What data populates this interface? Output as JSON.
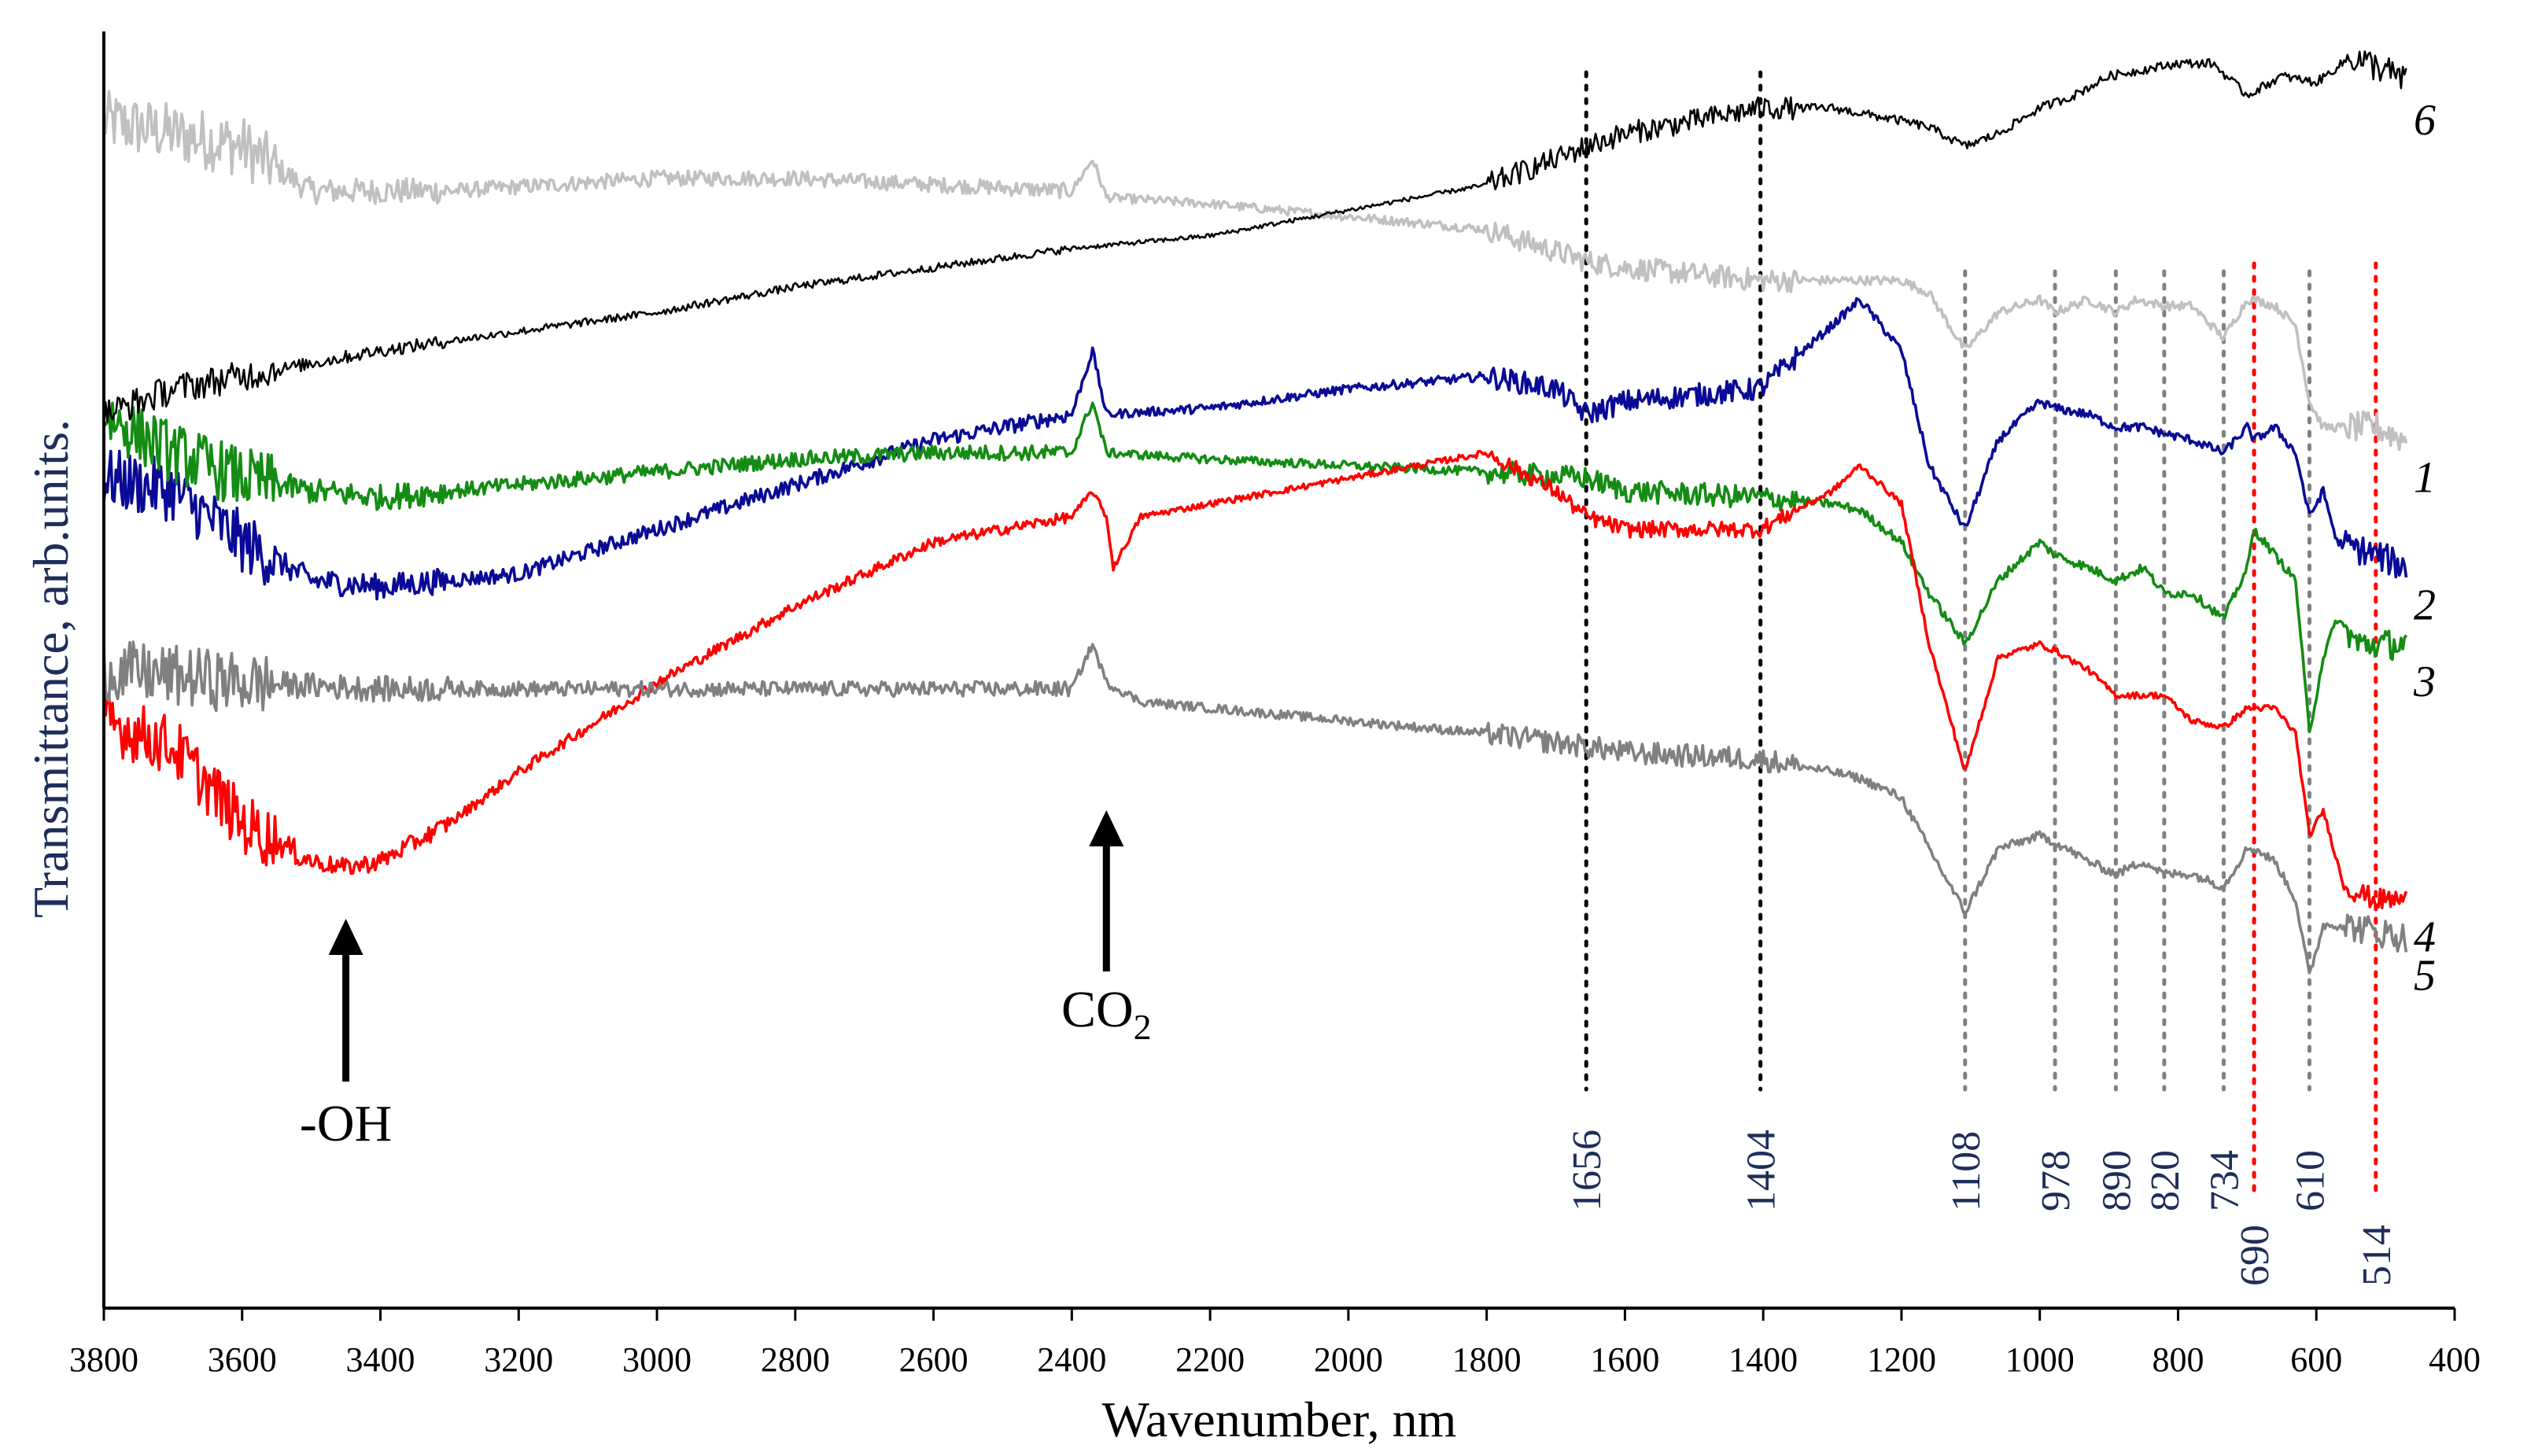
{
  "chart_data": {
    "type": "line",
    "xlabel": "Wavenumber, nm",
    "ylabel": "Transmittance, arb.units.",
    "xlim": [
      3800,
      400
    ],
    "x_ticks": [
      3800,
      3600,
      3400,
      3200,
      3000,
      2800,
      2600,
      2400,
      2200,
      2000,
      1800,
      1600,
      1400,
      1200,
      1000,
      800,
      600,
      400
    ],
    "ylim": [
      0,
      100
    ],
    "y_ticks_shown": false,
    "series": [
      {
        "name": "1",
        "color": "#c0c0c0",
        "label_pos": "right",
        "x": [
          3800,
          3600,
          3500,
          3300,
          3000,
          2800,
          2600,
          2400,
          2370,
          2350,
          2200,
          2000,
          1800,
          1656,
          1600,
          1404,
          1300,
          1200,
          1160,
          1108,
          1060,
          1000,
          978,
          930,
          890,
          860,
          820,
          780,
          734,
          700,
          690,
          660,
          630,
          610,
          590,
          540,
          514,
          470
        ],
        "y": [
          93,
          91,
          87.5,
          87.5,
          88.5,
          88.5,
          88,
          87.5,
          90,
          87,
          86.5,
          85.5,
          84.5,
          82,
          81.5,
          80.5,
          80.5,
          80.5,
          79.5,
          75,
          78,
          79,
          78,
          79,
          78,
          79,
          78.5,
          78.5,
          76,
          79,
          79,
          78.5,
          77,
          71,
          69,
          69,
          69,
          68
        ]
      },
      {
        "name": "2",
        "color": "#0a0a96",
        "label_pos": "right",
        "x": [
          3800,
          3700,
          3600,
          3500,
          3400,
          3200,
          3000,
          2800,
          2600,
          2400,
          2370,
          2350,
          2200,
          2000,
          1800,
          1700,
          1656,
          1600,
          1404,
          1300,
          1260,
          1200,
          1160,
          1108,
          1060,
          1000,
          978,
          930,
          890,
          850,
          820,
          780,
          734,
          700,
          690,
          660,
          630,
          610,
          590,
          570,
          514,
          470
        ],
        "y": [
          65,
          64,
          60,
          57,
          56.5,
          57.5,
          61,
          64.5,
          68,
          70,
          75,
          70,
          70.5,
          72,
          73,
          72,
          70,
          71,
          72,
          77,
          79,
          75,
          66,
          61,
          68,
          71,
          70.5,
          70,
          69,
          69,
          68.5,
          68,
          67,
          69,
          68,
          69,
          67,
          62,
          64,
          60,
          59,
          58
        ]
      },
      {
        "name": "3",
        "color": "#148c14",
        "label_pos": "right",
        "x": [
          3800,
          3700,
          3600,
          3500,
          3400,
          3200,
          3000,
          2800,
          2600,
          2400,
          2370,
          2350,
          2200,
          2000,
          1800,
          1656,
          1600,
          1404,
          1300,
          1260,
          1200,
          1160,
          1108,
          1060,
          1000,
          978,
          930,
          890,
          850,
          820,
          780,
          734,
          700,
          690,
          660,
          630,
          610,
          590,
          570,
          540,
          514,
          470
        ],
        "y": [
          70,
          67,
          65,
          64,
          63.5,
          64.5,
          65.5,
          66.5,
          67,
          67,
          71,
          67,
          66.5,
          66,
          65.5,
          65,
          64,
          63.5,
          63,
          62.5,
          60,
          56,
          52,
          57,
          60,
          59,
          58,
          57,
          58,
          56,
          56,
          54,
          58,
          61,
          59,
          57,
          45,
          51,
          54,
          52,
          52,
          52
        ]
      },
      {
        "name": "4",
        "color": "#ff0000",
        "label_pos": "right",
        "x": [
          3800,
          3700,
          3600,
          3500,
          3450,
          3400,
          3300,
          3200,
          3000,
          2800,
          2600,
          2400,
          2370,
          2350,
          2340,
          2300,
          2200,
          2000,
          1800,
          1700,
          1656,
          1600,
          1500,
          1404,
          1300,
          1260,
          1200,
          1160,
          1108,
          1060,
          1000,
          978,
          930,
          890,
          850,
          820,
          780,
          734,
          700,
          690,
          660,
          630,
          610,
          590,
          560,
          514,
          470
        ],
        "y": [
          46,
          44,
          38,
          35,
          34.5,
          35,
          38,
          42,
          49,
          55,
          60,
          62,
          64,
          62,
          58,
          62,
          63,
          65,
          67,
          64,
          62,
          61,
          61,
          61,
          64,
          66,
          63,
          52,
          42,
          51,
          52,
          51.5,
          50,
          48,
          48,
          48,
          46,
          45.5,
          47,
          47,
          47,
          45,
          37,
          39,
          33,
          32,
          32
        ]
      },
      {
        "name": "5",
        "color": "#808080",
        "label_pos": "right",
        "x": [
          3800,
          3700,
          3600,
          3400,
          3200,
          3000,
          2800,
          2600,
          2400,
          2370,
          2350,
          2300,
          2200,
          2000,
          1800,
          1656,
          1600,
          1404,
          1300,
          1260,
          1200,
          1160,
          1108,
          1060,
          1000,
          978,
          930,
          890,
          850,
          820,
          780,
          734,
          700,
          690,
          660,
          630,
          610,
          590,
          560,
          514,
          470
        ],
        "y": [
          50,
          49.5,
          49,
          48.5,
          48.5,
          48.5,
          48.5,
          48.5,
          48.5,
          52,
          49,
          47.5,
          47,
          46,
          45,
          44,
          43.5,
          43,
          42,
          41.5,
          40,
          36,
          31,
          36,
          37,
          36.5,
          35,
          34,
          35,
          34,
          34,
          33,
          36,
          36,
          35,
          32,
          26,
          30,
          30,
          29.5,
          29
        ]
      },
      {
        "name": "6",
        "color": "#000000",
        "label_pos": "right",
        "x": [
          3800,
          3700,
          3600,
          3400,
          3200,
          3000,
          2800,
          2600,
          2400,
          2200,
          2000,
          1800,
          1700,
          1656,
          1600,
          1500,
          1404,
          1300,
          1200,
          1160,
          1108,
          1060,
          1000,
          950,
          900,
          850,
          800,
          750,
          700,
          650,
          600,
          550,
          500,
          470
        ],
        "y": [
          70,
          72,
          73,
          75,
          76.5,
          78,
          80,
          81.5,
          83,
          84,
          86,
          88,
          90,
          91,
          92,
          93,
          94,
          94,
          93,
          92.5,
          91,
          92,
          94,
          95,
          96.5,
          97,
          97.5,
          97.5,
          95,
          96.5,
          96,
          98,
          97,
          96
        ]
      }
    ],
    "vlines": [
      {
        "x": 1656,
        "label": "1656",
        "color": "#000000"
      },
      {
        "x": 1404,
        "label": "1404",
        "color": "#000000"
      },
      {
        "x": 1108,
        "label": "1108",
        "color": "#808080"
      },
      {
        "x": 978,
        "label": "978",
        "color": "#808080"
      },
      {
        "x": 890,
        "label": "890",
        "color": "#808080"
      },
      {
        "x": 820,
        "label": "820",
        "color": "#808080"
      },
      {
        "x": 734,
        "label": "734",
        "color": "#808080"
      },
      {
        "x": 690,
        "label": "690",
        "color": "#ff0000"
      },
      {
        "x": 610,
        "label": "610",
        "color": "#808080"
      },
      {
        "x": 514,
        "label": "514",
        "color": "#ff0000"
      }
    ],
    "annotations": [
      {
        "text": "-OH",
        "x": 3450
      },
      {
        "text": "CO",
        "subscript": "2",
        "x": 2350
      }
    ]
  }
}
